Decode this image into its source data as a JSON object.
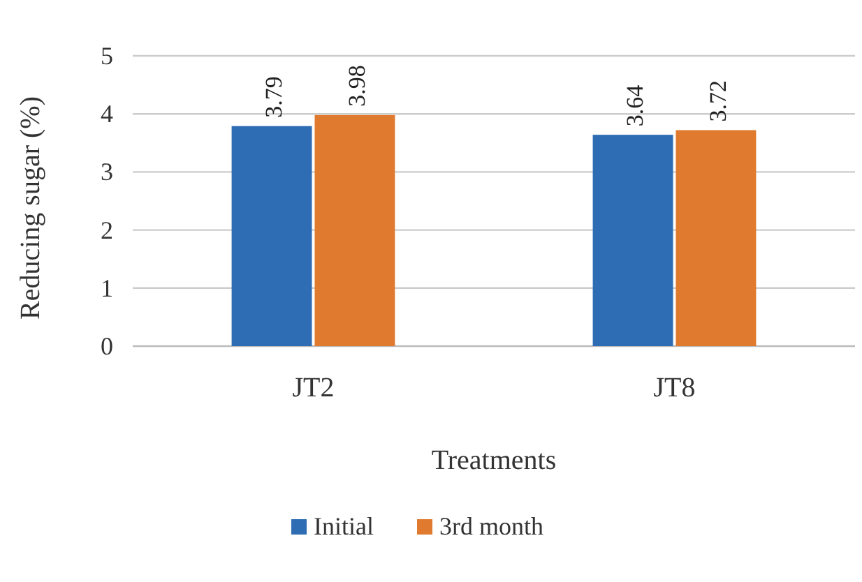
{
  "chart_data": {
    "type": "bar",
    "xlabel": "Treatments",
    "ylabel": "Reducing sugar (%)",
    "categories": [
      "JT2",
      "JT8"
    ],
    "series": [
      {
        "name": "Initial",
        "color": "#2e6db4",
        "values": [
          3.79,
          3.64
        ]
      },
      {
        "name": "3rd month",
        "color": "#e07a2e",
        "values": [
          3.98,
          3.72
        ]
      }
    ],
    "ylim": [
      0,
      5
    ],
    "yticks": [
      0,
      1,
      2,
      3,
      4,
      5
    ],
    "grid": "y",
    "legend": "bottom",
    "data_labels": true
  }
}
